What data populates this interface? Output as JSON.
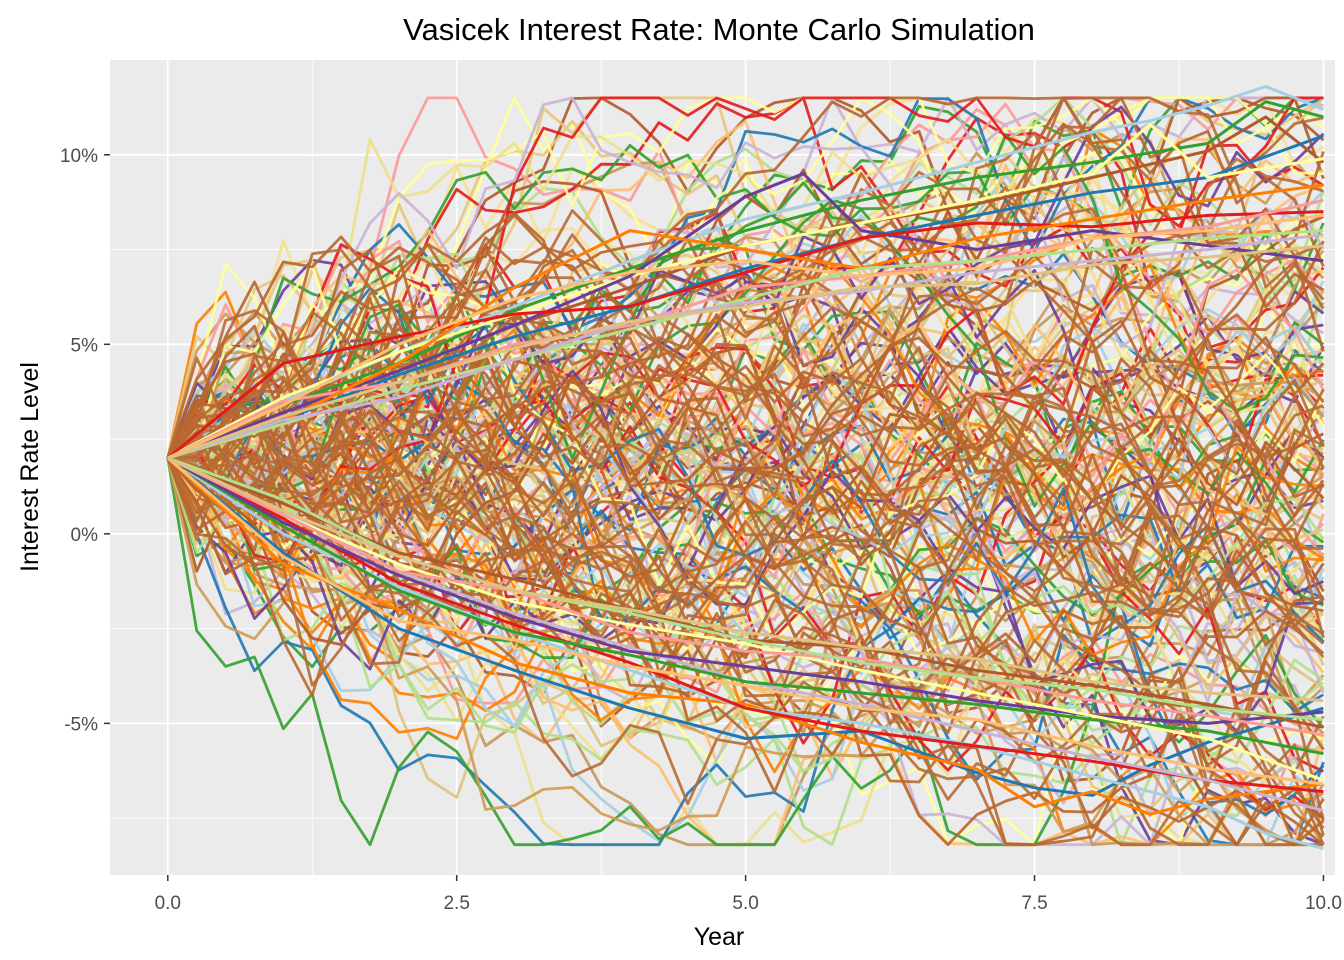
{
  "chart_data": {
    "type": "line",
    "title": "Vasicek Interest Rate: Monte Carlo Simulation",
    "xlabel": "Year",
    "ylabel": "Interest Rate Level",
    "xlim": [
      -0.5,
      10.1
    ],
    "ylim": [
      -9.0,
      12.5
    ],
    "x_ticks": [
      {
        "value": 0,
        "label": "0.0"
      },
      {
        "value": 2.5,
        "label": "2.5"
      },
      {
        "value": 5,
        "label": "5.0"
      },
      {
        "value": 7.5,
        "label": "7.5"
      },
      {
        "value": 10,
        "label": "10.0"
      }
    ],
    "y_ticks": [
      {
        "value": -5,
        "label": "-5%"
      },
      {
        "value": 0,
        "label": "0%"
      },
      {
        "value": 5,
        "label": "5%"
      },
      {
        "value": 10,
        "label": "10%"
      }
    ],
    "grid": true,
    "legend": "none",
    "panel_background": "#ebebeb",
    "grid_color": "#ffffff",
    "simulation": {
      "initial_rate": 2.0,
      "long_run_mean": 2.0,
      "time_step_years": 0.25,
      "horizon_years": 10,
      "n_paths": 200,
      "terminal_range": [
        -8.3,
        11.2
      ]
    },
    "series": [
      {
        "color": "#a6cee3",
        "x": [
          0,
          1,
          2,
          3,
          4,
          5,
          6,
          7,
          8,
          8.5,
          9,
          9.5,
          10
        ],
        "y": [
          2.0,
          3.5,
          4.8,
          6.0,
          7.2,
          8.3,
          9.0,
          9.8,
          10.6,
          10.9,
          11.3,
          11.8,
          11.2
        ]
      },
      {
        "color": "#33a02c",
        "x": [
          0,
          1,
          2,
          3,
          4,
          5,
          6,
          7,
          8,
          9,
          9.5,
          10
        ],
        "y": [
          2.0,
          3.4,
          4.5,
          5.9,
          7.0,
          8.0,
          8.8,
          9.4,
          9.8,
          10.3,
          11.4,
          11.0
        ]
      },
      {
        "color": "#b15928",
        "x": [
          0,
          1,
          2,
          3,
          4,
          5,
          6,
          7,
          8,
          9,
          9.5,
          10
        ],
        "y": [
          2.0,
          3.2,
          4.3,
          5.5,
          6.5,
          7.6,
          8.2,
          8.7,
          9.4,
          10.1,
          11.0,
          9.8
        ]
      },
      {
        "color": "#1f78b4",
        "x": [
          0,
          1,
          2,
          3,
          4,
          5,
          6,
          7,
          8,
          9,
          10
        ],
        "y": [
          2.0,
          3.0,
          4.2,
          5.2,
          6.0,
          7.0,
          7.8,
          8.4,
          9.0,
          9.4,
          10.5
        ]
      },
      {
        "color": "#ffff99",
        "x": [
          0,
          1,
          2,
          3,
          4,
          5,
          6,
          7,
          8,
          8.5,
          9,
          10
        ],
        "y": [
          2.0,
          3.6,
          4.8,
          5.8,
          6.8,
          7.6,
          8.2,
          8.8,
          9.5,
          10.8,
          9.4,
          9.9
        ]
      },
      {
        "color": "#6a3d9a",
        "x": [
          0,
          1,
          2,
          3,
          4,
          5,
          5.5,
          6,
          7,
          8,
          9,
          10
        ],
        "y": [
          2.0,
          3.2,
          4.3,
          5.5,
          6.8,
          8.9,
          9.5,
          8.0,
          7.5,
          8.0,
          7.6,
          7.2
        ]
      },
      {
        "color": "#e31a1c",
        "x": [
          0,
          1,
          2,
          3,
          4,
          5,
          6,
          7,
          8,
          9,
          10
        ],
        "y": [
          2.0,
          4.5,
          5.2,
          5.8,
          6.0,
          6.9,
          7.8,
          8.2,
          8.1,
          8.4,
          8.5
        ]
      },
      {
        "color": "#fb9a99",
        "x": [
          0,
          1,
          2,
          3,
          4,
          5,
          6,
          7,
          8,
          9,
          10
        ],
        "y": [
          2.0,
          3.5,
          4.0,
          5.0,
          5.5,
          6.5,
          6.8,
          7.2,
          7.8,
          8.1,
          8.8
        ]
      },
      {
        "color": "#ff7f00",
        "x": [
          0,
          1,
          2,
          3,
          4,
          5,
          6,
          7,
          8,
          9,
          10
        ],
        "y": [
          2.0,
          3.0,
          4.5,
          6.5,
          8.0,
          7.5,
          7.0,
          7.8,
          8.3,
          8.8,
          9.2
        ]
      },
      {
        "color": "#fdbf6f",
        "x": [
          0,
          1,
          2,
          3,
          4,
          5,
          6,
          7,
          8,
          9,
          10
        ],
        "y": [
          2.0,
          3.4,
          5.0,
          6.2,
          6.9,
          7.2,
          6.8,
          7.0,
          7.8,
          8.0,
          8.4
        ]
      },
      {
        "color": "#b2df8a",
        "x": [
          0,
          1,
          2,
          3,
          4,
          5,
          6,
          7,
          8,
          9,
          10
        ],
        "y": [
          2.0,
          2.9,
          3.8,
          4.6,
          5.4,
          6.2,
          7.0,
          7.2,
          7.5,
          7.8,
          8.0
        ]
      },
      {
        "color": "#cab2d6",
        "x": [
          0,
          1,
          2,
          3,
          4,
          5,
          6,
          7,
          8,
          9,
          10
        ],
        "y": [
          2.0,
          3.0,
          3.6,
          4.6,
          5.6,
          6.1,
          6.4,
          6.9,
          7.2,
          7.5,
          7.9
        ]
      },
      {
        "color": "#dfc27d",
        "x": [
          0,
          1,
          2,
          3,
          4,
          5,
          6,
          7,
          8,
          9,
          10
        ],
        "y": [
          2.0,
          3.1,
          4.0,
          4.9,
          5.6,
          6.0,
          6.5,
          6.6,
          7.1,
          7.3,
          7.6
        ]
      },
      {
        "color": "#1f78b4",
        "x": [
          0,
          1,
          2,
          3,
          4,
          5,
          6,
          7,
          7.5,
          8,
          8.5,
          9,
          10
        ],
        "y": [
          2.0,
          -0.5,
          -2.5,
          -3.6,
          -4.6,
          -5.4,
          -5.2,
          -6.3,
          -6.7,
          -6.9,
          -6.1,
          -5.5,
          -4.6
        ]
      },
      {
        "color": "#ff7f00",
        "x": [
          0,
          1,
          2,
          3,
          4,
          5,
          6,
          7,
          7.5,
          8,
          8.5,
          9,
          10
        ],
        "y": [
          2.0,
          -0.8,
          -2.0,
          -3.4,
          -4.2,
          -4.5,
          -5.5,
          -6.2,
          -7.2,
          -6.8,
          -7.4,
          -7.0,
          -6.6
        ]
      },
      {
        "color": "#a6cee3",
        "x": [
          0,
          1,
          2,
          3,
          4,
          5,
          6,
          7,
          8,
          9,
          9.5,
          10
        ],
        "y": [
          2.0,
          0.0,
          -1.4,
          -2.6,
          -3.6,
          -4.6,
          -5.0,
          -5.6,
          -6.4,
          -7.2,
          -7.9,
          -8.3
        ]
      },
      {
        "color": "#e31a1c",
        "x": [
          0,
          1,
          2,
          3,
          4,
          5,
          6,
          7,
          8,
          9,
          10
        ],
        "y": [
          2.0,
          0.4,
          -1.3,
          -2.4,
          -3.4,
          -4.6,
          -5.2,
          -5.6,
          -6.0,
          -6.5,
          -6.8
        ]
      },
      {
        "color": "#cab2d6",
        "x": [
          0,
          1,
          2,
          3,
          4,
          5,
          6,
          7,
          8,
          9,
          10
        ],
        "y": [
          2.0,
          0.6,
          -1.0,
          -2.1,
          -3.0,
          -3.9,
          -4.5,
          -5.2,
          -5.9,
          -6.5,
          -7.3
        ]
      },
      {
        "color": "#33a02c",
        "x": [
          0,
          1,
          2,
          3,
          4,
          5,
          6,
          7,
          8,
          9,
          10
        ],
        "y": [
          2.0,
          0.2,
          -1.5,
          -2.6,
          -3.2,
          -3.9,
          -4.2,
          -4.5,
          -4.9,
          -5.2,
          -5.8
        ]
      },
      {
        "color": "#6a3d9a",
        "x": [
          0,
          1,
          2,
          3,
          4,
          5,
          6,
          7,
          8,
          9,
          10
        ],
        "y": [
          2.0,
          0.3,
          -1.1,
          -2.2,
          -3.1,
          -3.5,
          -3.9,
          -4.4,
          -4.8,
          -5.0,
          -4.7
        ]
      },
      {
        "color": "#fdbf6f",
        "x": [
          0,
          1,
          2,
          3,
          4,
          5,
          6,
          7,
          8,
          9,
          10
        ],
        "y": [
          2.0,
          -0.6,
          -2.3,
          -2.8,
          -3.5,
          -4.0,
          -4.6,
          -4.9,
          -5.6,
          -6.2,
          -6.6
        ]
      },
      {
        "color": "#ffff99",
        "x": [
          0,
          1,
          2,
          3,
          4,
          5,
          6,
          7,
          8,
          9,
          10
        ],
        "y": [
          2.0,
          0.5,
          -0.8,
          -1.8,
          -2.4,
          -2.9,
          -3.6,
          -4.2,
          -4.8,
          -5.4,
          -6.5
        ]
      },
      {
        "color": "#b15928",
        "x": [
          0,
          1,
          2,
          3,
          4,
          5,
          6,
          7,
          8,
          9,
          10
        ],
        "y": [
          2.0,
          0.8,
          -0.5,
          -1.2,
          -2.0,
          -2.8,
          -3.0,
          -3.6,
          -4.0,
          -4.5,
          -5.1
        ]
      },
      {
        "color": "#fb9a99",
        "x": [
          0,
          1,
          2,
          3,
          4,
          5,
          6,
          7,
          8,
          9,
          10
        ],
        "y": [
          2.0,
          0.5,
          -1.0,
          -1.5,
          -2.6,
          -3.1,
          -3.3,
          -3.8,
          -4.4,
          -4.8,
          -5.3
        ]
      },
      {
        "color": "#b2df8a",
        "x": [
          0,
          1,
          2,
          3,
          4,
          5,
          6,
          7,
          8,
          9,
          10
        ],
        "y": [
          2.0,
          0.9,
          -0.6,
          -1.5,
          -2.1,
          -2.8,
          -3.4,
          -3.8,
          -4.1,
          -4.6,
          -4.9
        ]
      },
      {
        "color": "#dfc27d",
        "x": [
          0,
          1,
          2,
          3,
          4,
          5,
          6,
          7,
          8,
          9,
          10
        ],
        "y": [
          2.0,
          0.6,
          -0.6,
          -1.5,
          -2.0,
          -2.6,
          -3.0,
          -3.3,
          -3.9,
          -4.2,
          -4.4
        ]
      }
    ]
  }
}
